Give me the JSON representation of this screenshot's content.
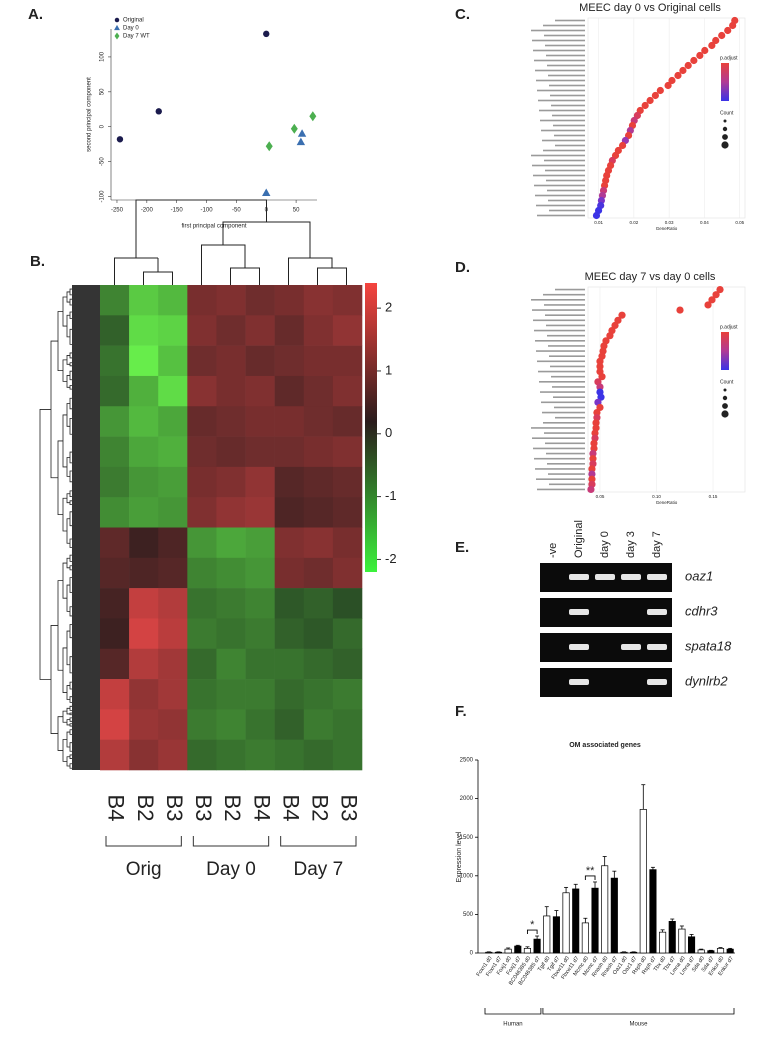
{
  "chart_data": [
    {
      "type": "scatter",
      "label": "A.",
      "xlabel": "first principal component",
      "ylabel": "second principal component",
      "xlim": [
        -260,
        85
      ],
      "ylim": [
        -105,
        140
      ],
      "xticks": [
        -250,
        -200,
        -150,
        -100,
        -50,
        0,
        50
      ],
      "yticks": [
        -100,
        -50,
        0,
        50,
        100
      ],
      "legend": "upper left",
      "series": [
        {
          "name": "Original",
          "color": "#1b1b4d",
          "marker": "circle",
          "x": [
            -245,
            -180,
            0
          ],
          "y": [
            -18,
            22,
            133
          ]
        },
        {
          "name": "Day 0",
          "color": "#3a6fb0",
          "marker": "triangle",
          "x": [
            0,
            60,
            58
          ],
          "y": [
            -95,
            -10,
            -22
          ]
        },
        {
          "name": "Day 7 WT",
          "color": "#4caf50",
          "marker": "diamond",
          "x": [
            5,
            47,
            78
          ],
          "y": [
            -28,
            -3,
            15
          ]
        }
      ]
    },
    {
      "type": "heatmap",
      "label": "B.",
      "columns": [
        "B4",
        "B2",
        "B3",
        "B3",
        "B2",
        "B4",
        "B4",
        "B2",
        "B3"
      ],
      "groups": [
        "Orig",
        "Day 0",
        "Day 7"
      ],
      "group_sizes": [
        3,
        3,
        3
      ],
      "clim": [
        -2.2,
        2.4
      ],
      "cticks": [
        2,
        1,
        0,
        -1,
        -2
      ],
      "matrix": [
        [
          -1.0,
          -1.8,
          -1.6,
          0.9,
          1.0,
          0.8,
          0.9,
          1.1,
          1.0
        ],
        [
          -0.6,
          -2.0,
          -1.9,
          1.0,
          0.8,
          1.0,
          0.7,
          1.0,
          1.2
        ],
        [
          -0.8,
          -2.2,
          -1.7,
          0.8,
          0.9,
          0.7,
          0.8,
          0.9,
          0.9
        ],
        [
          -0.7,
          -1.5,
          -2.0,
          1.1,
          0.9,
          1.0,
          0.6,
          0.8,
          1.0
        ],
        [
          -1.2,
          -1.6,
          -1.4,
          0.7,
          0.8,
          0.9,
          0.9,
          0.8,
          0.7
        ],
        [
          -1.0,
          -1.4,
          -1.5,
          0.8,
          0.7,
          0.8,
          0.8,
          0.9,
          1.0
        ],
        [
          -0.9,
          -1.2,
          -1.3,
          0.9,
          1.0,
          1.2,
          0.5,
          0.6,
          0.7
        ],
        [
          -1.1,
          -1.3,
          -1.2,
          1.0,
          1.2,
          1.3,
          0.4,
          0.5,
          0.6
        ],
        [
          0.6,
          0.2,
          0.4,
          -1.2,
          -1.4,
          -1.3,
          1.0,
          1.1,
          0.9
        ],
        [
          0.5,
          0.4,
          0.5,
          -1.0,
          -1.1,
          -1.2,
          0.9,
          0.8,
          1.0
        ],
        [
          0.3,
          1.8,
          1.6,
          -0.8,
          -0.9,
          -1.0,
          -0.5,
          -0.6,
          -0.4
        ],
        [
          0.2,
          2.0,
          1.7,
          -0.9,
          -0.8,
          -0.9,
          -0.6,
          -0.5,
          -0.7
        ],
        [
          0.5,
          1.6,
          1.4,
          -0.7,
          -1.0,
          -0.8,
          -0.8,
          -0.7,
          -0.6
        ],
        [
          1.8,
          1.2,
          1.4,
          -0.8,
          -0.9,
          -0.9,
          -0.7,
          -0.8,
          -0.9
        ],
        [
          2.0,
          1.3,
          1.2,
          -0.9,
          -1.0,
          -0.8,
          -0.6,
          -0.9,
          -0.8
        ],
        [
          1.6,
          1.1,
          1.3,
          -0.7,
          -0.8,
          -0.9,
          -0.8,
          -0.7,
          -0.8
        ]
      ]
    },
    {
      "type": "dotplot",
      "label": "C.",
      "title": "MEEC day 0 vs Original cells",
      "xlabel": "GeneRatio",
      "xlim": [
        0.007,
        0.0515
      ],
      "xticks": [
        0.01,
        0.02,
        0.03,
        0.04,
        0.05
      ],
      "legend_titles": [
        "p.adjust",
        "Count"
      ],
      "values": [
        0.0486,
        0.048,
        0.0466,
        0.0449,
        0.0432,
        0.0421,
        0.0401,
        0.0387,
        0.037,
        0.0354,
        0.0339,
        0.0325,
        0.0308,
        0.0297,
        0.0275,
        0.0261,
        0.0246,
        0.0232,
        0.0218,
        0.021,
        0.0201,
        0.0196,
        0.019,
        0.0185,
        0.0176,
        0.0168,
        0.0156,
        0.0148,
        0.0139,
        0.0134,
        0.0128,
        0.0123,
        0.012,
        0.0117,
        0.0114,
        0.0111,
        0.0108,
        0.0106,
        0.01,
        0.0094
      ],
      "colors": [
        "#e8413b",
        "#e8413b",
        "#e8413b",
        "#e8413b",
        "#e8413b",
        "#e8413b",
        "#e8413b",
        "#e8413b",
        "#e8413b",
        "#e8413b",
        "#e8413b",
        "#e8413b",
        "#e8413b",
        "#e8413b",
        "#e8413b",
        "#e8413b",
        "#e8413b",
        "#e8413b",
        "#e8413b",
        "#d83c5c",
        "#c83a78",
        "#e8413b",
        "#b03a95",
        "#e8413b",
        "#9a38b0",
        "#e8413b",
        "#e8413b",
        "#e8413b",
        "#d83c5c",
        "#e8413b",
        "#e8413b",
        "#e8413b",
        "#e8413b",
        "#e8413b",
        "#c83a78",
        "#b03a95",
        "#7a35c8",
        "#4b34dd",
        "#3b33e6",
        "#3b33e6"
      ]
    },
    {
      "type": "dotplot",
      "label": "D.",
      "title": "MEEC day 7 vs day 0 cells",
      "xlabel": "GeneRatio",
      "xlim": [
        0.0394,
        0.1783
      ],
      "xticks": [
        0.05,
        {
          "value": 0.1,
          "label": "0.10"
        },
        0.15
      ],
      "legend_titles": [
        "p.adjust",
        "Count"
      ],
      "values": [
        0.1562,
        0.1527,
        0.1491,
        0.1456,
        0.1208,
        0.0695,
        0.0659,
        0.0633,
        0.0606,
        0.0588,
        0.0553,
        0.0535,
        0.0527,
        0.0518,
        0.05,
        0.05,
        0.05,
        0.0518,
        0.0482,
        0.05,
        0.05,
        0.0509,
        0.0482,
        0.05,
        0.0473,
        0.0473,
        0.0465,
        0.0465,
        0.0456,
        0.0456,
        0.0447,
        0.0447,
        0.0438,
        0.0438,
        0.0438,
        0.0429,
        0.0429,
        0.0429,
        0.0429,
        0.042
      ],
      "colors": [
        "#e8413b",
        "#e8413b",
        "#e8413b",
        "#e8413b",
        "#e8413b",
        "#e8413b",
        "#e8413b",
        "#e8413b",
        "#e8413b",
        "#e8413b",
        "#e8413b",
        "#e8413b",
        "#e8413b",
        "#e8413b",
        "#e8413b",
        "#e8413b",
        "#e8413b",
        "#e8413b",
        "#d83c5c",
        "#c83a78",
        "#3b33e6",
        "#3b33e6",
        "#7a35c8",
        "#e8413b",
        "#e8413b",
        "#d83c5c",
        "#e8413b",
        "#e8413b",
        "#e8413b",
        "#d83c5c",
        "#e8413b",
        "#e8413b",
        "#c83a78",
        "#e8413b",
        "#d83c5c",
        "#e8413b",
        "#b03a95",
        "#e8413b",
        "#d83c5c",
        "#c83a78"
      ]
    },
    {
      "type": "gel",
      "label": "E.",
      "lanes": [
        "-ve",
        "Original",
        "day 0",
        "day 3",
        "day 7"
      ],
      "genes": [
        "oaz1",
        "cdhr3",
        "spata18",
        "dynlrb2"
      ],
      "bands": [
        [
          1,
          2,
          3,
          4
        ],
        [
          1,
          4
        ],
        [
          1,
          3,
          4
        ],
        [
          1,
          4
        ]
      ]
    },
    {
      "type": "bar",
      "label": "F.",
      "title": "OM associated genes",
      "ylabel": "Expression level",
      "ylim": [
        0,
        2500
      ],
      "yticks": [
        0,
        500,
        1000,
        1500,
        2000,
        2500
      ],
      "categories": [
        "Foxn1 d0",
        "Foxn1 d7",
        "Foxj1 d0",
        "Foxj1 d7",
        "BC046385 d0",
        "BC046385 d7",
        "Tgif d0",
        "Tgif d7",
        "Fbxw11 d0",
        "Fbxw11 d7",
        "Mcmc d0",
        "Mcmc d7",
        "Rnash d0",
        "Rnash d7",
        "Oaz1 d0",
        "Oaz1 d7",
        "Rsph d0",
        "Rsph d7",
        "Tbx d0",
        "Tbx d7",
        "Lmna d0",
        "Lmna d7",
        "Sda d0",
        "Sda d7",
        "Enkur d0",
        "Enkur d7"
      ],
      "values": [
        10,
        10,
        50,
        90,
        60,
        180,
        480,
        470,
        780,
        830,
        390,
        840,
        1130,
        970,
        10,
        10,
        1860,
        1080,
        270,
        410,
        310,
        210,
        40,
        30,
        60,
        50
      ],
      "errors": [
        5,
        5,
        15,
        10,
        20,
        40,
        120,
        80,
        70,
        60,
        60,
        80,
        120,
        90,
        5,
        5,
        320,
        30,
        30,
        30,
        40,
        30,
        10,
        5,
        10,
        10
      ],
      "colors": [
        "#ffffff",
        "#000000",
        "#ffffff",
        "#000000",
        "#ffffff",
        "#000000",
        "#ffffff",
        "#000000",
        "#ffffff",
        "#000000",
        "#ffffff",
        "#000000",
        "#ffffff",
        "#000000",
        "#ffffff",
        "#000000",
        "#ffffff",
        "#000000",
        "#ffffff",
        "#000000",
        "#ffffff",
        "#000000",
        "#ffffff",
        "#000000",
        "#ffffff",
        "#000000"
      ],
      "groups": [
        "Human",
        "Mouse"
      ],
      "group_sizes": [
        6,
        20
      ],
      "annotations": [
        {
          "text": "*",
          "bars": [
            4,
            5
          ]
        },
        {
          "text": "**",
          "bars": [
            10,
            11
          ]
        }
      ]
    }
  ]
}
